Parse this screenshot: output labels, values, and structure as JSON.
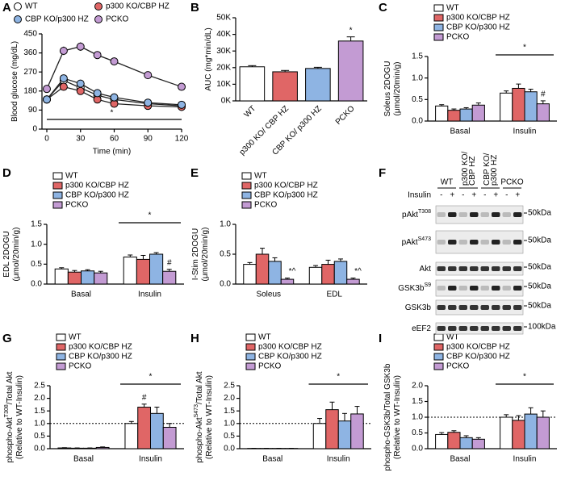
{
  "chart_data": [
    {
      "panel": "A",
      "type": "line",
      "x": [
        0,
        15,
        30,
        45,
        60,
        90,
        120
      ],
      "xlim": [
        0,
        120
      ],
      "xticks": [
        0,
        30,
        60,
        90,
        120
      ],
      "ylim": [
        0,
        450
      ],
      "yticks": [
        0,
        90,
        180,
        270,
        360,
        450
      ],
      "xlabel": "Time (min)",
      "ylabel": [
        [
          "Blood glucose (mg/dL)"
        ]
      ],
      "annotation": "*",
      "series": [
        {
          "name": "WT",
          "color": "#ffffff",
          "values": [
            140,
            230,
            195,
            160,
            140,
            120,
            110
          ],
          "errors": [
            5,
            8,
            8,
            7,
            6,
            5,
            4
          ]
        },
        {
          "name": "p300 KO/CBP HZ",
          "color": "#e06666",
          "values": [
            140,
            200,
            180,
            140,
            120,
            110,
            105
          ],
          "errors": [
            5,
            8,
            8,
            6,
            5,
            4,
            4
          ]
        },
        {
          "name": "CBP KO/p300 HZ",
          "color": "#8eb4e3",
          "values": [
            140,
            240,
            215,
            170,
            150,
            125,
            115
          ],
          "errors": [
            5,
            9,
            9,
            7,
            6,
            5,
            4
          ]
        },
        {
          "name": "PCKO",
          "color": "#c39bd3",
          "values": [
            190,
            370,
            390,
            350,
            320,
            255,
            200
          ],
          "errors": [
            10,
            20,
            20,
            18,
            18,
            15,
            12
          ]
        }
      ]
    },
    {
      "panel": "B",
      "type": "bar",
      "categories": [
        "WT",
        "p300 KO/ CBP HZ",
        "CBP KO/ p300 HZ",
        "PCKO"
      ],
      "values": [
        20500,
        17500,
        19500,
        36000
      ],
      "errors": [
        700,
        800,
        700,
        2500
      ],
      "colors": [
        "#ffffff",
        "#e06666",
        "#8eb4e3",
        "#c39bd3"
      ],
      "annotations": [
        null,
        null,
        null,
        "*"
      ],
      "ylabel": [
        [
          "AUC (mg*min/dL)"
        ]
      ],
      "ylim": [
        0,
        50000
      ],
      "yticks": [
        {
          "value": 0,
          "label": "0K"
        },
        {
          "value": 10000,
          "label": "10K"
        },
        {
          "value": 20000,
          "label": "20K"
        },
        {
          "value": 30000,
          "label": "30K"
        },
        {
          "value": 40000,
          "label": "40K"
        },
        {
          "value": 50000,
          "label": "50K"
        }
      ]
    },
    {
      "panel": "C",
      "type": "grouped_bar",
      "groups": [
        "Basal",
        "Insulin"
      ],
      "ylim": [
        0,
        1.5
      ],
      "yticks": [
        {
          "value": 0,
          "label": "0.0"
        },
        0.5,
        {
          "value": 1,
          "label": "1.0"
        },
        1.5
      ],
      "ylabel": [
        [
          "Soleus 2DOGU"
        ],
        [
          "(μmol/20min/g)"
        ]
      ],
      "group_annotations": [
        null,
        "*"
      ],
      "series": [
        {
          "name": "WT",
          "color": "#ffffff",
          "values": [
            0.35,
            0.65
          ],
          "errors": [
            0.03,
            0.05
          ]
        },
        {
          "name": "p300 KO/CBP HZ",
          "color": "#e06666",
          "values": [
            0.25,
            0.76
          ],
          "errors": [
            0.03,
            0.1
          ]
        },
        {
          "name": "CBP KO/p300 HZ",
          "color": "#8eb4e3",
          "values": [
            0.28,
            0.68
          ],
          "errors": [
            0.03,
            0.06
          ]
        },
        {
          "name": "PCKO",
          "color": "#c39bd3",
          "values": [
            0.37,
            0.4
          ],
          "errors": [
            0.05,
            0.07
          ],
          "annotations": [
            null,
            "#"
          ]
        }
      ]
    },
    {
      "panel": "D",
      "type": "grouped_bar",
      "groups": [
        "Basal",
        "Insulin"
      ],
      "ylim": [
        0,
        1.5
      ],
      "yticks": [
        {
          "value": 0,
          "label": "0.0"
        },
        0.5,
        {
          "value": 1,
          "label": "1.0"
        },
        1.5
      ],
      "ylabel": [
        [
          "EDL 2DOGU"
        ],
        [
          "(μmol/20min/g)"
        ]
      ],
      "group_annotations": [
        null,
        "*"
      ],
      "series": [
        {
          "name": "WT",
          "color": "#ffffff",
          "values": [
            0.38,
            0.68
          ],
          "errors": [
            0.03,
            0.05
          ]
        },
        {
          "name": "p300 KO/CBP HZ",
          "color": "#e06666",
          "values": [
            0.3,
            0.62
          ],
          "errors": [
            0.04,
            0.1
          ]
        },
        {
          "name": "CBP KO/p300 HZ",
          "color": "#8eb4e3",
          "values": [
            0.33,
            0.75
          ],
          "errors": [
            0.03,
            0.04
          ]
        },
        {
          "name": "PCKO",
          "color": "#c39bd3",
          "values": [
            0.28,
            0.32
          ],
          "errors": [
            0.04,
            0.05
          ],
          "annotations": [
            null,
            "#"
          ]
        }
      ]
    },
    {
      "panel": "E",
      "type": "grouped_bar",
      "groups": [
        "Soleus",
        "EDL"
      ],
      "ylim": [
        0,
        1
      ],
      "yticks": [
        {
          "value": 0,
          "label": "0.0"
        },
        0.5,
        {
          "value": 1,
          "label": "1.0"
        }
      ],
      "ylabel": [
        [
          "I-Stim 2DOGU"
        ],
        [
          "(μmol/20min/g)"
        ]
      ],
      "series": [
        {
          "name": "WT",
          "color": "#ffffff",
          "values": [
            0.33,
            0.28
          ],
          "errors": [
            0.03,
            0.03
          ]
        },
        {
          "name": "p300 KO/CBP HZ",
          "color": "#e06666",
          "values": [
            0.5,
            0.33
          ],
          "errors": [
            0.1,
            0.07
          ]
        },
        {
          "name": "CBP KO/p300 HZ",
          "color": "#8eb4e3",
          "values": [
            0.38,
            0.38
          ],
          "errors": [
            0.06,
            0.04
          ]
        },
        {
          "name": "PCKO",
          "color": "#c39bd3",
          "values": [
            0.08,
            0.08
          ],
          "errors": [
            0.02,
            0.02
          ],
          "annotations": [
            "*^",
            "*^"
          ]
        }
      ]
    },
    {
      "panel": "G",
      "type": "grouped_bar",
      "groups": [
        "Basal",
        "Insulin"
      ],
      "ylim": [
        0,
        2.5
      ],
      "reference_line": 1,
      "yticks": [
        {
          "value": 0,
          "label": "0.0"
        },
        0.5,
        {
          "value": 1,
          "label": "1.0"
        },
        1.5,
        {
          "value": 2,
          "label": "2.0"
        },
        2.5
      ],
      "ylabel": [
        [
          "phospho-Akt",
          "T308",
          "/Total Akt"
        ],
        [
          "(Relative to WT-Insulin)"
        ]
      ],
      "group_annotations": [
        null,
        "*"
      ],
      "series": [
        {
          "name": "WT",
          "color": "#ffffff",
          "values": [
            0.03,
            1.0
          ],
          "errors": [
            0.01,
            0.08
          ]
        },
        {
          "name": "p300 KO/CBP HZ",
          "color": "#e06666",
          "values": [
            0.02,
            1.65
          ],
          "errors": [
            0.01,
            0.12
          ],
          "annotations": [
            null,
            "#"
          ]
        },
        {
          "name": "CBP KO/p300 HZ",
          "color": "#8eb4e3",
          "values": [
            0.02,
            1.4
          ],
          "errors": [
            0.01,
            0.25
          ]
        },
        {
          "name": "PCKO",
          "color": "#c39bd3",
          "values": [
            0.05,
            0.85
          ],
          "errors": [
            0.02,
            0.15
          ]
        }
      ]
    },
    {
      "panel": "H",
      "type": "grouped_bar",
      "groups": [
        "Basal",
        "Insulin"
      ],
      "ylim": [
        0,
        2.5
      ],
      "reference_line": 1,
      "yticks": [
        {
          "value": 0,
          "label": "0.0"
        },
        0.5,
        {
          "value": 1,
          "label": "1.0"
        },
        1.5,
        {
          "value": 2,
          "label": "2.0"
        },
        2.5
      ],
      "ylabel": [
        [
          "phospho-Akt",
          "S473",
          "/Total Akt"
        ],
        [
          "(Relative to WT-Insulin)"
        ]
      ],
      "group_annotations": [
        null,
        "*"
      ],
      "series": [
        {
          "name": "WT",
          "color": "#ffffff",
          "values": [
            0.01,
            1.0
          ],
          "errors": [
            0.005,
            0.2
          ]
        },
        {
          "name": "p300 KO/CBP HZ",
          "color": "#e06666",
          "values": [
            0.01,
            1.55
          ],
          "errors": [
            0.005,
            0.3
          ]
        },
        {
          "name": "CBP KO/p300 HZ",
          "color": "#8eb4e3",
          "values": [
            0.01,
            1.1
          ],
          "errors": [
            0.005,
            0.3
          ]
        },
        {
          "name": "PCKO",
          "color": "#c39bd3",
          "values": [
            0.01,
            1.38
          ],
          "errors": [
            0.005,
            0.3
          ]
        }
      ]
    },
    {
      "panel": "I",
      "type": "grouped_bar",
      "groups": [
        "Basal",
        "Insulin"
      ],
      "ylim": [
        0,
        2
      ],
      "reference_line": 1,
      "yticks": [
        {
          "value": 0,
          "label": "0.0"
        },
        0.5,
        {
          "value": 1,
          "label": "1.0"
        },
        1.5,
        {
          "value": 2,
          "label": "2.0"
        }
      ],
      "ylabel": [
        [
          "phospho-GSK3b/Total GSK3b"
        ],
        [
          "(Relative to WT-Insulin)"
        ]
      ],
      "group_annotations": [
        null,
        "*"
      ],
      "series": [
        {
          "name": "WT",
          "color": "#ffffff",
          "values": [
            0.45,
            1.0
          ],
          "errors": [
            0.06,
            0.08
          ]
        },
        {
          "name": "p300 KO/CBP HZ",
          "color": "#e06666",
          "values": [
            0.52,
            0.9
          ],
          "errors": [
            0.05,
            0.15
          ]
        },
        {
          "name": "CBP KO/p300 HZ",
          "color": "#8eb4e3",
          "values": [
            0.35,
            1.1
          ],
          "errors": [
            0.06,
            0.2
          ]
        },
        {
          "name": "PCKO",
          "color": "#c39bd3",
          "values": [
            0.3,
            1.0
          ],
          "errors": [
            0.05,
            0.2
          ]
        }
      ]
    }
  ],
  "blot": {
    "panel": "F",
    "groups": [
      [
        "WT"
      ],
      [
        "p300 KO/",
        "CBP HZ"
      ],
      [
        "CBP KO/",
        "p300 HZ"
      ],
      [
        "PCKO"
      ]
    ],
    "treatment": "Insulin",
    "signs": [
      "-",
      "+"
    ],
    "rows": [
      {
        "name": "pAkt",
        "sup": "T308",
        "marker": "50kDa"
      },
      {
        "name": "pAkt",
        "sup": "S473",
        "marker": "50kDa"
      },
      {
        "name": "Akt",
        "marker": "50kDa"
      },
      {
        "name": "GSK3b",
        "sup": "S9",
        "marker": "50kDa"
      },
      {
        "name": "GSK3b",
        "marker": "50kDa"
      },
      {
        "name": "eEF2",
        "marker": "100kDa"
      }
    ]
  }
}
